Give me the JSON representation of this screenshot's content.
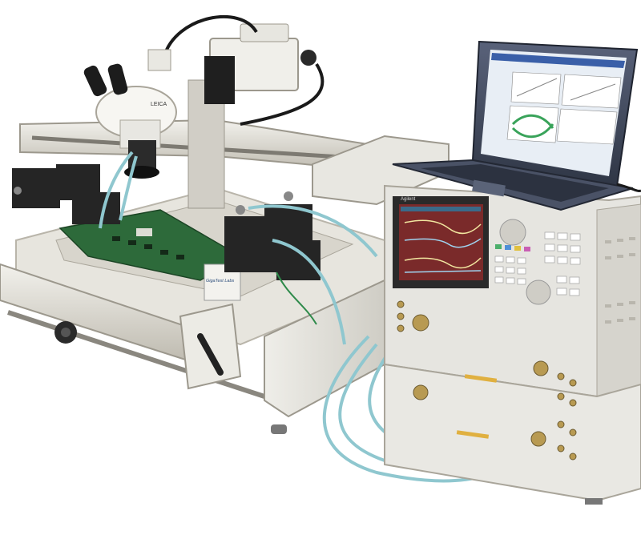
{
  "scene": {
    "microscope_brand": "LEICA",
    "probe_station_brand": "GigaTest Labs",
    "analyzer_brand": "Agilent"
  },
  "colors": {
    "background": "#ffffff",
    "frame": "#d9d6cc",
    "frame_shadow": "#a8a499",
    "cable": "#8fc7cf",
    "pcb": "#2d6a3a",
    "positioner": "#2a2a2a",
    "instrument": "#e6e5e0",
    "instrument_screen_bg": "#7a2a2a",
    "laptop_body": "#3d4554",
    "laptop_screen": "#e8eef5",
    "eye_diagram": "#39a35a"
  },
  "icons": {
    "microscope": "microscope-icon",
    "laptop": "laptop-icon",
    "vna": "network-analyzer-icon"
  }
}
